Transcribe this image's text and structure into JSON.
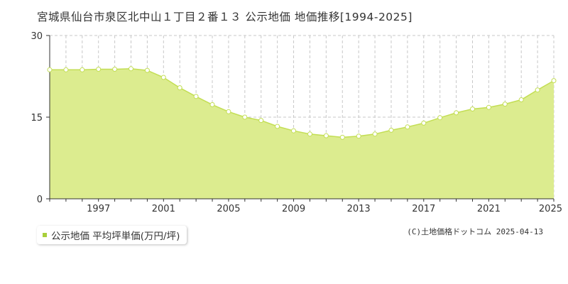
{
  "title": "宮城県仙台市泉区北中山１丁目２番１３ 公示地価 地価推移[1994-2025]",
  "legend_label": "公示地価 平均坪単価(万円/坪)",
  "copyright": "(C)土地価格ドットコム 2025-04-13",
  "colors": {
    "fill": "#dcec8f",
    "line": "#c3de54",
    "marker_fill": "#ffffff",
    "marker_stroke": "#c3de54",
    "legend_swatch": "#a8cf3a",
    "axis": "#333333",
    "grid": "#c8c8c8"
  },
  "chart_data": {
    "type": "area",
    "title": "宮城県仙台市泉区北中山１丁目２番１３ 公示地価 地価推移[1994-2025]",
    "xlabel": "",
    "ylabel": "",
    "x_range": [
      1994,
      2025
    ],
    "ylim": [
      0,
      30
    ],
    "y_ticks": [
      0,
      15,
      30
    ],
    "x_ticks": [
      1997,
      2001,
      2005,
      2009,
      2013,
      2017,
      2021,
      2025
    ],
    "grid": true,
    "series": [
      {
        "name": "公示地価 平均坪単価(万円/坪)",
        "x": [
          1994,
          1995,
          1996,
          1997,
          1998,
          1999,
          2000,
          2001,
          2002,
          2003,
          2004,
          2005,
          2006,
          2007,
          2008,
          2009,
          2010,
          2011,
          2012,
          2013,
          2014,
          2015,
          2016,
          2017,
          2018,
          2019,
          2020,
          2021,
          2022,
          2023,
          2024,
          2025
        ],
        "values": [
          23.7,
          23.7,
          23.7,
          23.8,
          23.8,
          23.9,
          23.6,
          22.3,
          20.4,
          18.8,
          17.3,
          16.0,
          15.0,
          14.4,
          13.3,
          12.5,
          11.9,
          11.6,
          11.3,
          11.5,
          11.9,
          12.6,
          13.2,
          13.9,
          14.9,
          15.8,
          16.5,
          16.8,
          17.4,
          18.2,
          20.0,
          21.7
        ]
      }
    ]
  }
}
